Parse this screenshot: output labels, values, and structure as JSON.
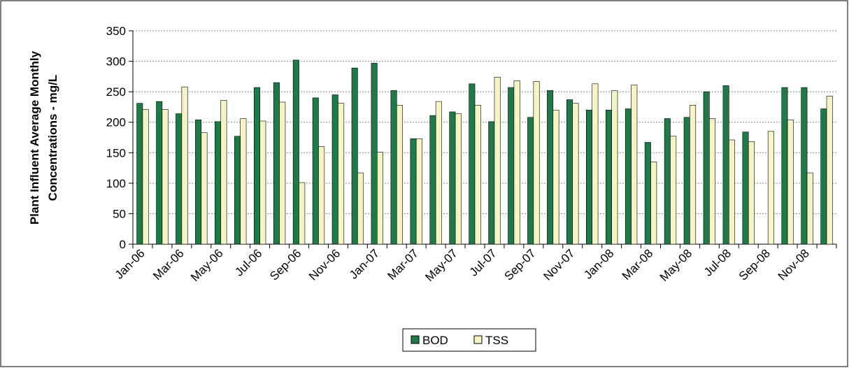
{
  "chart_data": {
    "type": "bar",
    "ylabel_lines": [
      "Plant Influent Average Monthly",
      "Concentrations - mg/L"
    ],
    "categories": [
      "Jan-06",
      null,
      "Mar-06",
      null,
      "May-06",
      null,
      "Jul-06",
      null,
      "Sep-06",
      null,
      "Nov-06",
      null,
      "Jan-07",
      null,
      "Mar-07",
      null,
      "May-07",
      null,
      "Jul-07",
      null,
      "Sep-07",
      null,
      "Nov-07",
      null,
      "Jan-08",
      null,
      "Mar-08",
      null,
      "May-08",
      null,
      "Jul-08",
      null,
      "Sep-08",
      null,
      "Nov-08",
      null
    ],
    "series": [
      {
        "name": "BOD",
        "color": "#1f7a4a",
        "values": [
          231,
          234,
          214,
          204,
          201,
          177,
          257,
          265,
          302,
          240,
          245,
          289,
          297,
          252,
          173,
          211,
          217,
          263,
          201,
          257,
          208,
          252,
          237,
          220,
          220,
          222,
          167,
          206,
          208,
          250,
          260,
          184,
          null,
          257,
          257,
          222
        ]
      },
      {
        "name": "TSS",
        "color": "#f4f4c4",
        "values": [
          221,
          221,
          258,
          183,
          236,
          206,
          202,
          233,
          101,
          160,
          231,
          117,
          151,
          228,
          173,
          234,
          214,
          228,
          274,
          268,
          267,
          220,
          231,
          263,
          252,
          261,
          135,
          177,
          228,
          206,
          171,
          168,
          185,
          204,
          117,
          243
        ]
      }
    ],
    "ylim": [
      0,
      350
    ],
    "yticks": [
      0,
      50,
      100,
      150,
      200,
      250,
      300,
      350
    ],
    "grid": true,
    "legend": "bottom"
  }
}
